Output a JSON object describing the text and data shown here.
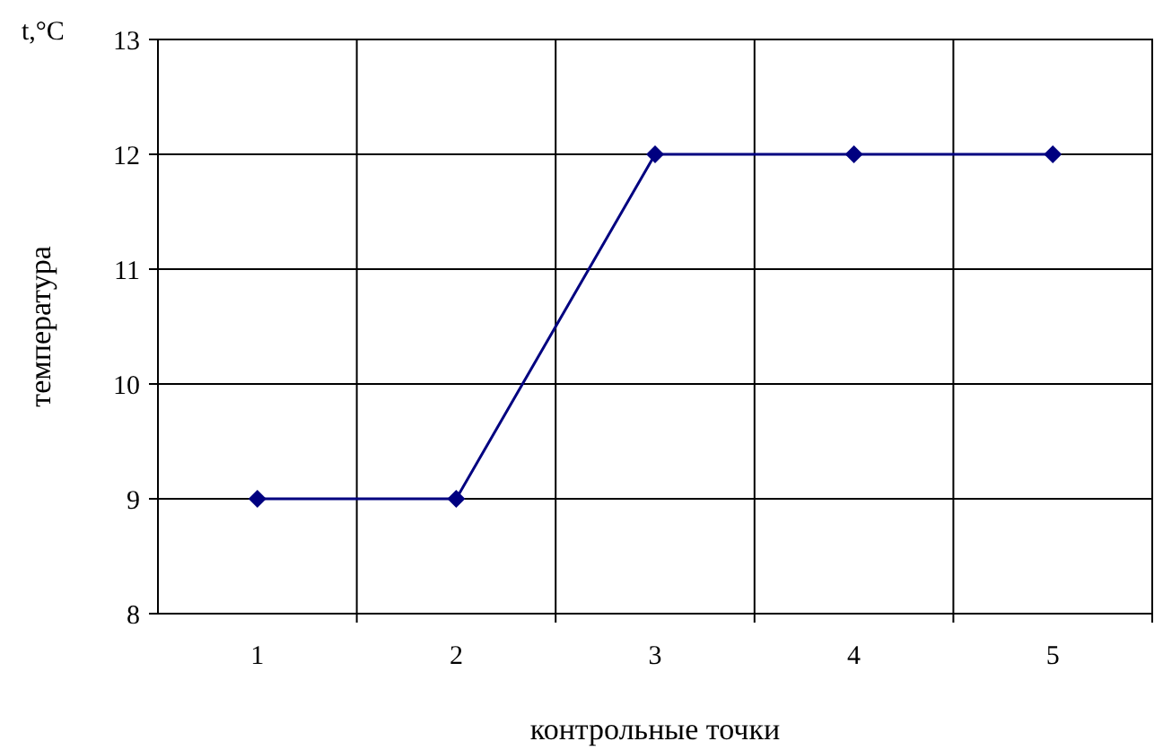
{
  "chart_data": {
    "type": "line",
    "xlabel": "контрольные точки",
    "ylabel": "температура",
    "annotations": [
      "t,°C"
    ],
    "categories": [
      "1",
      "2",
      "3",
      "4",
      "5"
    ],
    "series": [
      {
        "color": "#000080",
        "values": [
          9,
          9,
          12,
          12,
          12
        ]
      }
    ],
    "ylim": [
      8,
      13
    ],
    "yticks": [
      8,
      9,
      10,
      11,
      12,
      13
    ],
    "grid": true,
    "marker": "diamond",
    "line_style": "solid"
  }
}
